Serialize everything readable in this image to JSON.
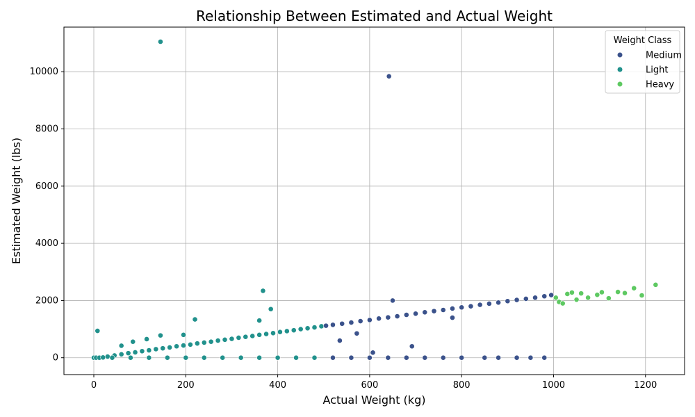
{
  "chart_data": {
    "type": "scatter",
    "title": "Relationship Between Estimated and Actual Weight",
    "xlabel": "Actual Weight (kg)",
    "ylabel": "Estimated Weight (lbs)",
    "xlim": [
      -65,
      1285
    ],
    "ylim": [
      -590,
      11560
    ],
    "xticks": [
      0,
      200,
      400,
      600,
      800,
      1000,
      1200
    ],
    "yticks": [
      0,
      2000,
      4000,
      6000,
      8000,
      10000
    ],
    "grid": true,
    "legend": {
      "title": "Weight Class",
      "position": "top-right",
      "entries": [
        {
          "name": "Medium",
          "color": "#3b528b"
        },
        {
          "name": "Light",
          "color": "#21918c"
        },
        {
          "name": "Heavy",
          "color": "#5ec962"
        }
      ]
    },
    "series": [
      {
        "name": "Light",
        "color": "#21918c",
        "points": [
          [
            0,
            0
          ],
          [
            5,
            0
          ],
          [
            12,
            0
          ],
          [
            20,
            10
          ],
          [
            30,
            40
          ],
          [
            45,
            80
          ],
          [
            60,
            120
          ],
          [
            75,
            160
          ],
          [
            90,
            190
          ],
          [
            105,
            230
          ],
          [
            120,
            260
          ],
          [
            135,
            300
          ],
          [
            150,
            330
          ],
          [
            165,
            360
          ],
          [
            180,
            400
          ],
          [
            195,
            430
          ],
          [
            210,
            460
          ],
          [
            225,
            500
          ],
          [
            240,
            530
          ],
          [
            255,
            560
          ],
          [
            270,
            600
          ],
          [
            285,
            630
          ],
          [
            300,
            660
          ],
          [
            315,
            700
          ],
          [
            330,
            730
          ],
          [
            345,
            760
          ],
          [
            360,
            800
          ],
          [
            375,
            830
          ],
          [
            390,
            860
          ],
          [
            405,
            900
          ],
          [
            420,
            930
          ],
          [
            435,
            960
          ],
          [
            450,
            1000
          ],
          [
            465,
            1030
          ],
          [
            480,
            1060
          ],
          [
            495,
            1100
          ],
          [
            40,
            0
          ],
          [
            80,
            0
          ],
          [
            120,
            0
          ],
          [
            160,
            0
          ],
          [
            200,
            0
          ],
          [
            240,
            0
          ],
          [
            280,
            0
          ],
          [
            320,
            0
          ],
          [
            360,
            0
          ],
          [
            400,
            0
          ],
          [
            440,
            0
          ],
          [
            480,
            0
          ],
          [
            8,
            940
          ],
          [
            145,
            11050
          ],
          [
            220,
            1340
          ],
          [
            368,
            2340
          ],
          [
            385,
            1700
          ],
          [
            360,
            1300
          ],
          [
            60,
            420
          ],
          [
            115,
            650
          ],
          [
            145,
            780
          ],
          [
            195,
            800
          ],
          [
            85,
            560
          ]
        ]
      },
      {
        "name": "Medium",
        "color": "#3b528b",
        "points": [
          [
            505,
            1120
          ],
          [
            520,
            1150
          ],
          [
            540,
            1190
          ],
          [
            560,
            1230
          ],
          [
            580,
            1280
          ],
          [
            600,
            1320
          ],
          [
            620,
            1370
          ],
          [
            640,
            1410
          ],
          [
            660,
            1450
          ],
          [
            680,
            1500
          ],
          [
            700,
            1540
          ],
          [
            720,
            1590
          ],
          [
            740,
            1630
          ],
          [
            760,
            1670
          ],
          [
            780,
            1720
          ],
          [
            800,
            1760
          ],
          [
            820,
            1800
          ],
          [
            840,
            1850
          ],
          [
            860,
            1890
          ],
          [
            880,
            1930
          ],
          [
            900,
            1980
          ],
          [
            920,
            2020
          ],
          [
            940,
            2060
          ],
          [
            960,
            2100
          ],
          [
            980,
            2150
          ],
          [
            995,
            2190
          ],
          [
            520,
            0
          ],
          [
            560,
            0
          ],
          [
            600,
            0
          ],
          [
            640,
            0
          ],
          [
            680,
            0
          ],
          [
            720,
            0
          ],
          [
            760,
            0
          ],
          [
            800,
            0
          ],
          [
            850,
            0
          ],
          [
            880,
            0
          ],
          [
            920,
            0
          ],
          [
            950,
            0
          ],
          [
            980,
            0
          ],
          [
            642,
            9840
          ],
          [
            535,
            600
          ],
          [
            692,
            400
          ],
          [
            607,
            180
          ],
          [
            650,
            2000
          ],
          [
            572,
            850
          ],
          [
            780,
            1400
          ]
        ]
      },
      {
        "name": "Heavy",
        "color": "#5ec962",
        "points": [
          [
            1005,
            2100
          ],
          [
            1012,
            1950
          ],
          [
            1020,
            1900
          ],
          [
            1030,
            2230
          ],
          [
            1040,
            2280
          ],
          [
            1050,
            2030
          ],
          [
            1060,
            2250
          ],
          [
            1075,
            2100
          ],
          [
            1095,
            2200
          ],
          [
            1105,
            2290
          ],
          [
            1120,
            2080
          ],
          [
            1140,
            2300
          ],
          [
            1155,
            2260
          ],
          [
            1175,
            2430
          ],
          [
            1192,
            2180
          ],
          [
            1222,
            2550
          ]
        ]
      }
    ]
  }
}
